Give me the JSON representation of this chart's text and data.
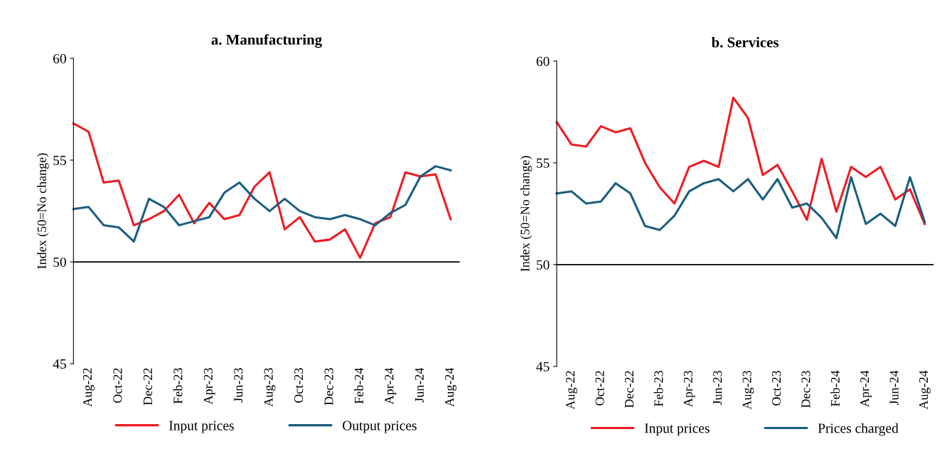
{
  "chart_data": [
    {
      "type": "line",
      "title": "a. Manufacturing",
      "ylabel": "Index (50=No change)",
      "categories": [
        null,
        "Aug-22",
        null,
        "Oct-22",
        null,
        "Dec-22",
        null,
        "Feb-23",
        null,
        "Apr-23",
        null,
        "Jun-23",
        null,
        "Aug-23",
        null,
        "Oct-23",
        null,
        "Dec-23",
        null,
        "Feb-24",
        null,
        "Apr-24",
        null,
        "Jun-24",
        null,
        "Aug-24"
      ],
      "series": [
        {
          "name": "Input prices",
          "color": "#ed1c24",
          "values": [
            56.8,
            56.4,
            53.9,
            54.0,
            51.8,
            52.1,
            52.5,
            53.3,
            51.9,
            52.9,
            52.1,
            52.3,
            53.7,
            54.4,
            51.6,
            52.2,
            51.0,
            51.1,
            51.6,
            50.2,
            51.9,
            52.2,
            54.4,
            54.2,
            54.3,
            52.1
          ]
        },
        {
          "name": "Output prices",
          "color": "#1b5e80",
          "values": [
            52.6,
            52.7,
            51.8,
            51.7,
            51.0,
            53.1,
            52.7,
            51.8,
            52.0,
            52.2,
            53.4,
            53.9,
            53.1,
            52.5,
            53.1,
            52.5,
            52.2,
            52.1,
            52.3,
            52.1,
            51.8,
            52.4,
            52.8,
            54.2,
            54.7,
            54.5
          ]
        }
      ],
      "ylim": [
        45,
        60
      ],
      "yticks": [
        45,
        50,
        55,
        60
      ],
      "legend": "bottom",
      "grid": false,
      "ref_lines": [
        {
          "axis": "y",
          "value": 50,
          "color": "#000000"
        }
      ]
    },
    {
      "type": "line",
      "title": "b. Services",
      "ylabel": "Index (50=No change)",
      "categories": [
        null,
        "Aug-22",
        null,
        "Oct-22",
        null,
        "Dec-22",
        null,
        "Feb-23",
        null,
        "Apr-23",
        null,
        "Jun-23",
        null,
        "Aug-23",
        null,
        "Oct-23",
        null,
        "Dec-23",
        null,
        "Feb-24",
        null,
        "Apr-24",
        null,
        "Jun-24",
        null,
        "Aug-24"
      ],
      "series": [
        {
          "name": "Input prices",
          "color": "#ed1c24",
          "values": [
            57.0,
            55.9,
            55.8,
            56.8,
            56.5,
            56.7,
            55.0,
            53.8,
            53.0,
            54.8,
            55.1,
            54.8,
            58.2,
            57.2,
            54.4,
            54.9,
            53.6,
            52.2,
            55.2,
            52.6,
            54.8,
            54.3,
            54.8,
            53.2,
            53.7,
            52.0
          ]
        },
        {
          "name": "Prices charged",
          "color": "#1b5e80",
          "values": [
            53.5,
            53.6,
            53.0,
            53.1,
            54.0,
            53.5,
            51.9,
            51.7,
            52.4,
            53.6,
            54.0,
            54.2,
            53.6,
            54.2,
            53.2,
            54.2,
            52.8,
            53.0,
            52.3,
            51.3,
            54.3,
            52.0,
            52.5,
            51.9,
            54.3,
            52.1
          ]
        }
      ],
      "ylim": [
        45,
        60
      ],
      "yticks": [
        45,
        50,
        55,
        60
      ],
      "legend": "bottom",
      "grid": false,
      "ref_lines": [
        {
          "axis": "y",
          "value": 50,
          "color": "#000000"
        }
      ]
    }
  ]
}
